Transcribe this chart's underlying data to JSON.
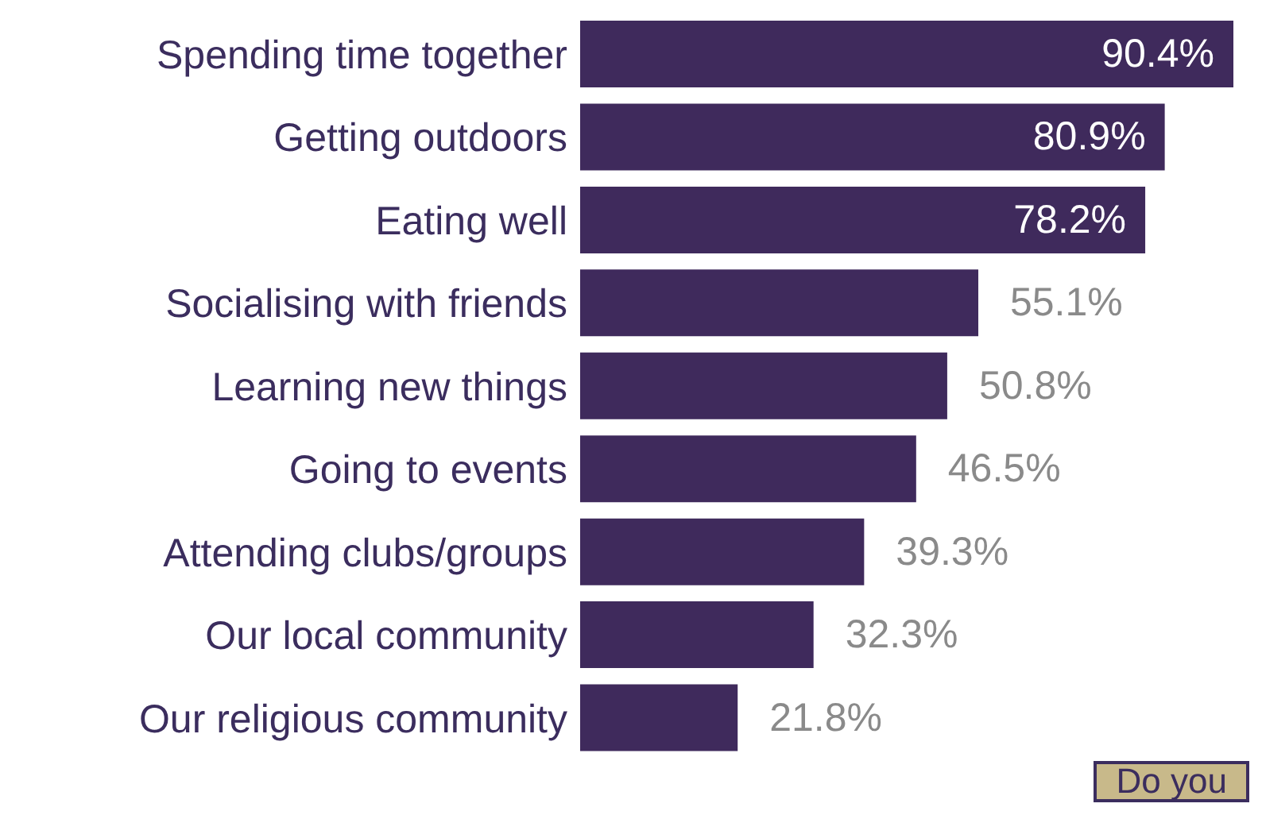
{
  "chart_data": {
    "type": "bar",
    "orientation": "horizontal",
    "categories": [
      "Spending time together",
      "Getting outdoors",
      "Eating well",
      "Socialising with friends",
      "Learning new things",
      "Going to events",
      "Attending clubs/groups",
      "Our local community",
      "Our religious community"
    ],
    "values": [
      90.4,
      80.9,
      78.2,
      55.1,
      50.8,
      46.5,
      39.3,
      32.3,
      21.8
    ],
    "value_labels": [
      "90.4%",
      "80.9%",
      "78.2%",
      "55.1%",
      "50.8%",
      "46.5%",
      "39.3%",
      "32.3%",
      "21.8%"
    ],
    "color": "#3f2a5c",
    "tick_labels": "y",
    "annotations": [
      "Do you"
    ]
  }
}
